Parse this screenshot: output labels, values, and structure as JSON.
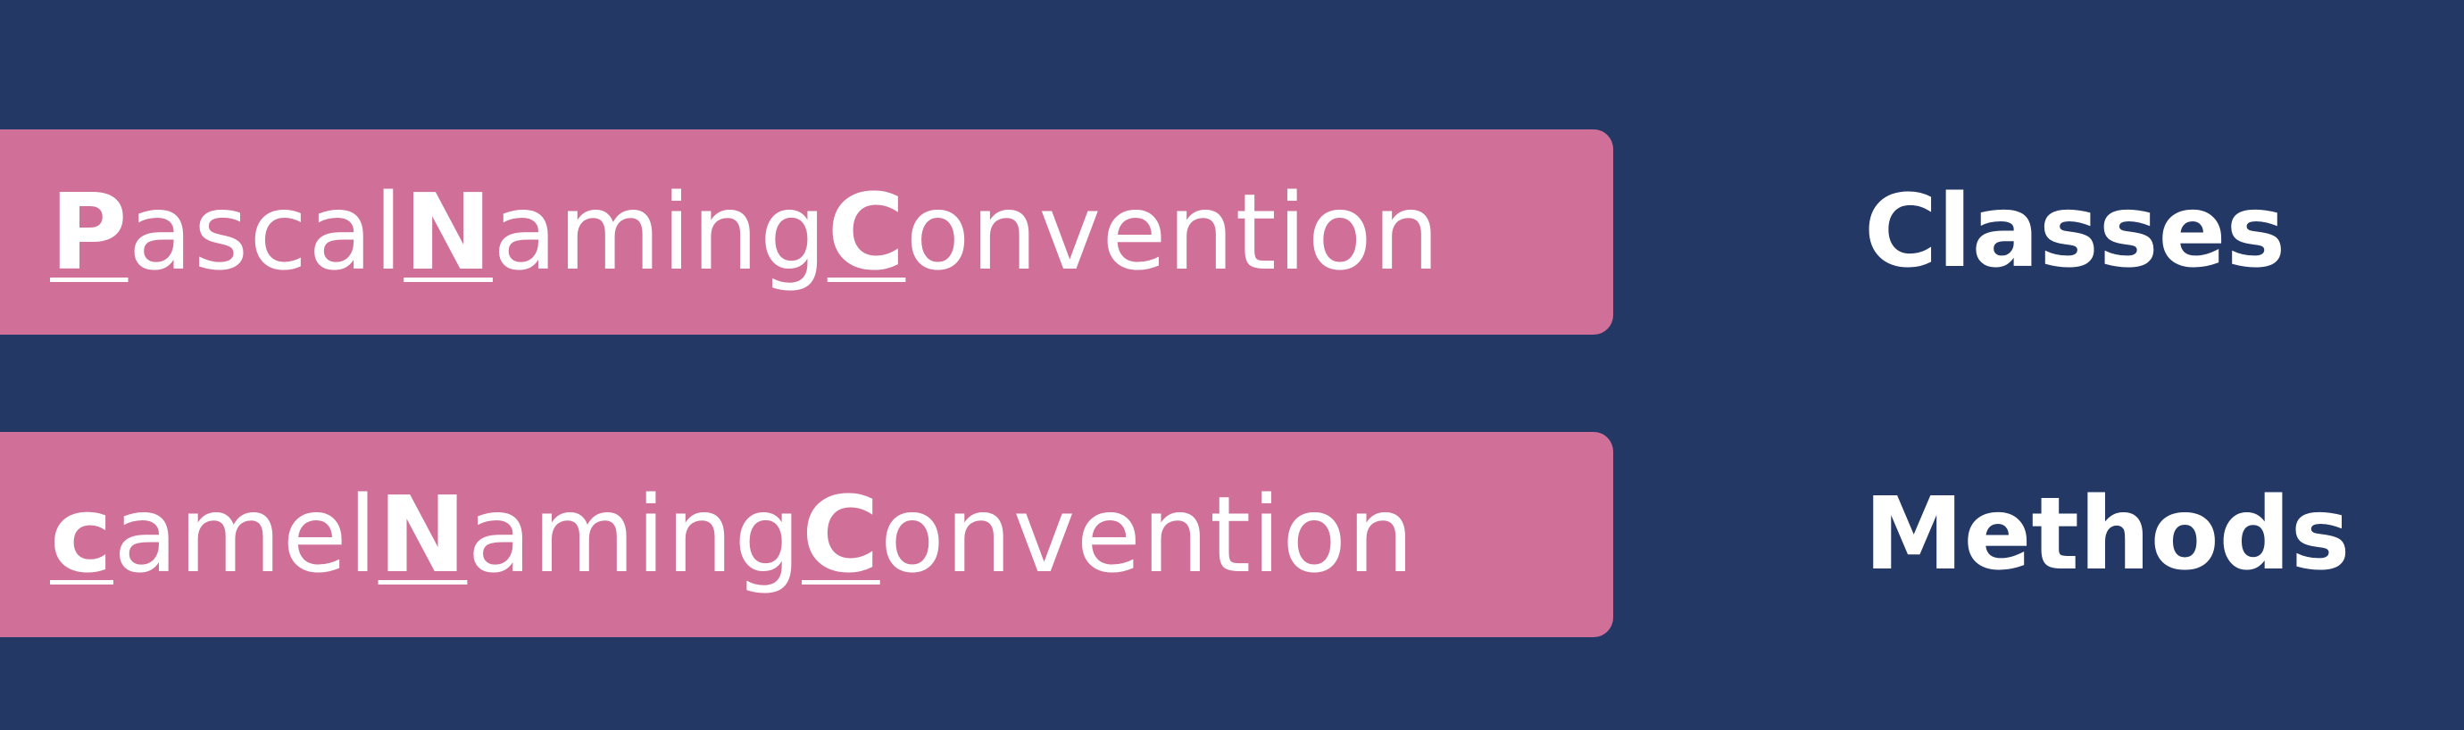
{
  "rows": [
    {
      "segments": [
        {
          "text": "P",
          "emphasis": true
        },
        {
          "text": "ascal",
          "emphasis": false
        },
        {
          "text": "N",
          "emphasis": true
        },
        {
          "text": "aming",
          "emphasis": false
        },
        {
          "text": "C",
          "emphasis": true
        },
        {
          "text": "onvention",
          "emphasis": false
        }
      ],
      "label": "Classes"
    },
    {
      "segments": [
        {
          "text": "c",
          "emphasis": true
        },
        {
          "text": "amel",
          "emphasis": false
        },
        {
          "text": "N",
          "emphasis": true
        },
        {
          "text": "aming",
          "emphasis": false
        },
        {
          "text": "C",
          "emphasis": true
        },
        {
          "text": "onvention",
          "emphasis": false
        }
      ],
      "label": "Methods"
    }
  ],
  "colors": {
    "background": "#243866",
    "bar": "#d07099",
    "text": "#ffffff"
  }
}
